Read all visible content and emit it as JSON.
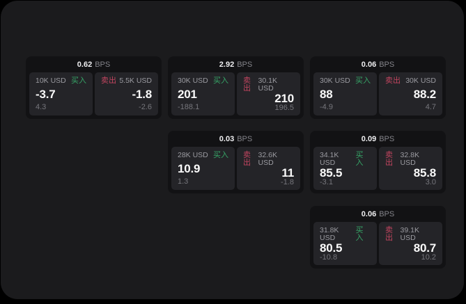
{
  "page": {
    "background": "#000000",
    "panel_background": "#1b1b1d"
  },
  "colors": {
    "card_background": "#121214",
    "cell_background": "#242428",
    "buy_green": "#36a567",
    "sell_red": "#c2455f",
    "text_primary": "#fafafa",
    "text_secondary": "#9b9ba1",
    "text_muted": "#76767c"
  },
  "labels": {
    "bps": "BPS",
    "buy": "买入",
    "sell": "卖出"
  },
  "cards": [
    {
      "bps": "0.62",
      "buy": {
        "size": "10K USD",
        "price": "-3.7",
        "delta": "4.3"
      },
      "sell": {
        "size": "5.5K USD",
        "price": "-1.8",
        "delta": "-2.6"
      }
    },
    {
      "bps": "2.92",
      "buy": {
        "size": "30K USD",
        "price": "201",
        "delta": "-188.1"
      },
      "sell": {
        "size": "30.1K USD",
        "price": "210",
        "delta": "196.5"
      }
    },
    {
      "bps": "0.06",
      "buy": {
        "size": "30K USD",
        "price": "88",
        "delta": "-4.9"
      },
      "sell": {
        "size": "30K USD",
        "price": "88.2",
        "delta": "4.7"
      }
    },
    {
      "bps": "0.03",
      "buy": {
        "size": "28K USD",
        "price": "10.9",
        "delta": "1.3"
      },
      "sell": {
        "size": "32.6K USD",
        "price": "11",
        "delta": "-1.8"
      }
    },
    {
      "bps": "0.09",
      "buy": {
        "size": "34.1K USD",
        "price": "85.5",
        "delta": "-3.1"
      },
      "sell": {
        "size": "32.8K USD",
        "price": "85.8",
        "delta": "3.0"
      }
    },
    {
      "bps": "0.06",
      "buy": {
        "size": "31.8K USD",
        "price": "80.5",
        "delta": "-10.8"
      },
      "sell": {
        "size": "39.1K USD",
        "price": "80.7",
        "delta": "10.2"
      }
    }
  ]
}
